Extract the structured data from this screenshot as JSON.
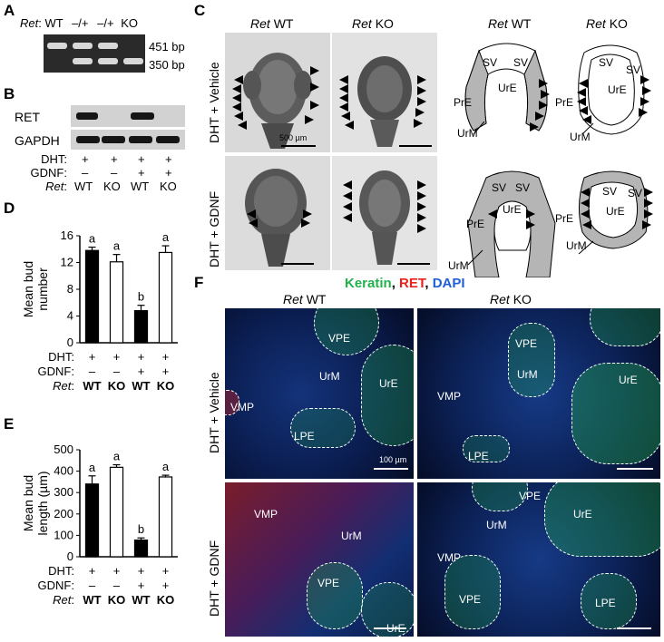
{
  "panels": {
    "A": "A",
    "B": "B",
    "C": "C",
    "D": "D",
    "E": "E",
    "F": "F"
  },
  "panelA": {
    "ret_label": "Ret",
    "lanes": [
      ": WT",
      "–/+",
      "–/+",
      "KO"
    ],
    "bands": [
      "451 bp",
      "350 bp"
    ]
  },
  "panelB": {
    "proteins": [
      "RET",
      "GAPDH"
    ],
    "conditions": [
      {
        "label": "DHT:",
        "values": [
          "+",
          "+",
          "+",
          "+"
        ]
      },
      {
        "label": "GDNF:",
        "values": [
          "–",
          "–",
          "+",
          "+"
        ]
      },
      {
        "label": ": ",
        "values": [
          "WT",
          "KO",
          "WT",
          "KO"
        ]
      }
    ],
    "ret_label": "Ret"
  },
  "panelC": {
    "col_headers": [
      {
        "gene": "Ret",
        "genotype": "WT"
      },
      {
        "gene": "Ret",
        "genotype": "KO"
      },
      {
        "gene": "Ret",
        "genotype": "WT"
      },
      {
        "gene": "Ret",
        "genotype": "KO"
      }
    ],
    "row_labels": [
      "DHT + Vehicle",
      "DHT + GDNF"
    ],
    "scale": "500 µm",
    "schematic_labels": {
      "sv": "SV",
      "ure": "UrE",
      "pre": "PrE",
      "urm": "UrM"
    }
  },
  "panelF": {
    "stain_title": {
      "keratin": "Keratin",
      "sep1": ", ",
      "ret": "RET",
      "sep2": ", ",
      "dapi": "DAPI"
    },
    "stain_colors": {
      "keratin": "#22b14c",
      "ret": "#e8211d",
      "dapi": "#1f5fd6"
    },
    "col_headers": [
      {
        "gene": "Ret",
        "genotype": "WT"
      },
      {
        "gene": "Ret",
        "genotype": "KO"
      }
    ],
    "row_labels": [
      "DHT + Vehicle",
      "DHT + GDNF"
    ],
    "scale": "100 µm",
    "regions": {
      "tl": [
        "VPE",
        "UrM",
        "UrE",
        "VMP",
        "LPE"
      ],
      "tr": [
        "VPE",
        "UrM",
        "UrE",
        "VMP",
        "LPE"
      ],
      "bl": [
        "VMP",
        "UrM",
        "VPE",
        "UrE"
      ],
      "br": [
        "VPE",
        "UrM",
        "UrE",
        "VMP",
        "VPE",
        "LPE"
      ]
    }
  },
  "chart_data": [
    {
      "type": "bar",
      "panel": "D",
      "ylabel": "Mean bud number",
      "ylim": [
        0,
        16
      ],
      "yticks": [
        0,
        4,
        8,
        12,
        16
      ],
      "categories": [
        "WT",
        "KO",
        "WT",
        "KO"
      ],
      "conditions": [
        {
          "label": "DHT:",
          "values": [
            "+",
            "+",
            "+",
            "+"
          ]
        },
        {
          "label": "GDNF:",
          "values": [
            "–",
            "–",
            "+",
            "+"
          ]
        },
        {
          "label": ": ",
          "values": [
            "WT",
            "KO",
            "WT",
            "KO"
          ]
        }
      ],
      "ret_label": "Ret",
      "values": [
        13.8,
        12.1,
        4.8,
        13.5
      ],
      "errors": [
        0.5,
        1.1,
        0.8,
        1.0
      ],
      "fills": [
        "#000000",
        "#ffffff",
        "#000000",
        "#ffffff"
      ],
      "letters": [
        "a",
        "a",
        "b",
        "a"
      ]
    },
    {
      "type": "bar",
      "panel": "E",
      "ylabel": "Mean bud length (µm)",
      "ylim": [
        0,
        500
      ],
      "yticks": [
        0,
        100,
        200,
        300,
        400,
        500
      ],
      "categories": [
        "WT",
        "KO",
        "WT",
        "KO"
      ],
      "conditions": [
        {
          "label": "DHT:",
          "values": [
            "+",
            "+",
            "+",
            "+"
          ]
        },
        {
          "label": "GDNF:",
          "values": [
            "–",
            "–",
            "+",
            "+"
          ]
        },
        {
          "label": ": ",
          "values": [
            "WT",
            "KO",
            "WT",
            "KO"
          ]
        }
      ],
      "ret_label": "Ret",
      "values": [
        340,
        418,
        78,
        373
      ],
      "errors": [
        38,
        12,
        10,
        8
      ],
      "fills": [
        "#000000",
        "#ffffff",
        "#000000",
        "#ffffff"
      ],
      "letters": [
        "a",
        "a",
        "b",
        "a"
      ]
    }
  ]
}
